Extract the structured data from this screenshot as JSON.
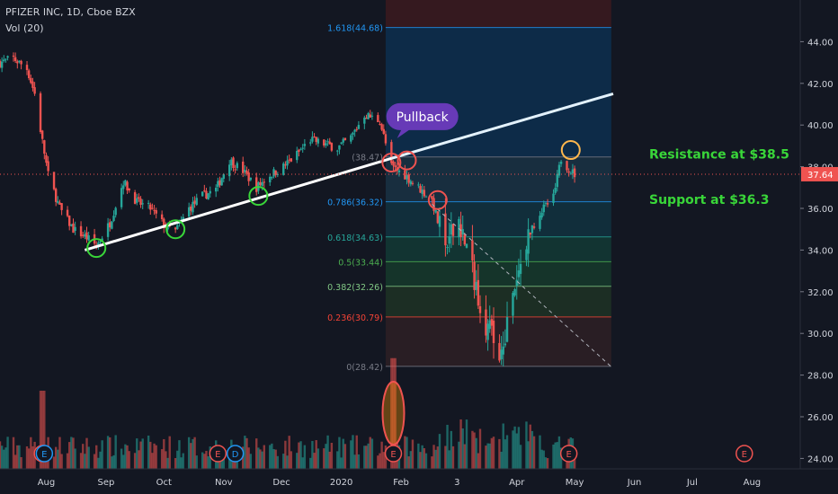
{
  "header": {
    "symbol_line": "PFIZER INC, 1D, Cboe BZX",
    "volume_indicator": "Vol (20)"
  },
  "colors": {
    "background": "#131722",
    "up": "#26a69a",
    "down": "#ef5350",
    "trendline": "#ffffff",
    "breakdown_line": "#b2b5be",
    "annotation_text": "#39d639",
    "pullback_bubble": "#673ab7",
    "price_badge": "#ef5350"
  },
  "annotations": {
    "pullback": "Pullback",
    "resistance": "Resistance at $38.5",
    "support": "Support at $36.3"
  },
  "current_price": "37.64",
  "event_markers": [
    {
      "label": "E",
      "date": "2019-07-30",
      "color": "#ef5350"
    },
    {
      "label": "E",
      "date": "2019-07-31",
      "color": "#2196f3"
    },
    {
      "label": "E",
      "date": "2019-10-29",
      "color": "#ef5350"
    },
    {
      "label": "D",
      "date": "2019-11-07",
      "color": "#2196f3"
    },
    {
      "label": "E",
      "date": "2020-01-28",
      "color": "#ef5350"
    },
    {
      "label": "E",
      "date": "2020-04-28",
      "color": "#ef5350"
    },
    {
      "label": "E",
      "date": "2020-07-28",
      "color": "#ef5350"
    }
  ],
  "chart_data": {
    "type": "candlestick",
    "x_axis": {
      "range": [
        "2019-07-08",
        "2020-08-26"
      ],
      "tick_labels": [
        {
          "date": "2019-08-01",
          "label": "Aug"
        },
        {
          "date": "2019-09-01",
          "label": "Sep"
        },
        {
          "date": "2019-10-01",
          "label": "Oct"
        },
        {
          "date": "2019-11-01",
          "label": "Nov"
        },
        {
          "date": "2019-12-01",
          "label": "Dec"
        },
        {
          "date": "2020-01-01",
          "label": "2020"
        },
        {
          "date": "2020-02-01",
          "label": "Feb"
        },
        {
          "date": "2020-03-01",
          "label": "3"
        },
        {
          "date": "2020-04-01",
          "label": "Apr"
        },
        {
          "date": "2020-05-01",
          "label": "May"
        },
        {
          "date": "2020-06-01",
          "label": "Jun"
        },
        {
          "date": "2020-07-01",
          "label": "Jul"
        },
        {
          "date": "2020-08-01",
          "label": "Aug"
        }
      ]
    },
    "y_axis": {
      "range": [
        23.5,
        46.0
      ],
      "tick_labels": [
        "24.00",
        "26.00",
        "28.00",
        "30.00",
        "32.00",
        "34.00",
        "36.00",
        "38.00",
        "40.00",
        "42.00",
        "44.00"
      ],
      "tick_values": [
        24,
        26,
        28,
        30,
        32,
        34,
        36,
        38,
        40,
        42,
        44
      ]
    },
    "price_path": [
      [
        "2019-07-08",
        43.0
      ],
      [
        "2019-07-15",
        43.2
      ],
      [
        "2019-07-22",
        42.7
      ],
      [
        "2019-07-26",
        41.5
      ],
      [
        "2019-07-30",
        39.2
      ],
      [
        "2019-08-02",
        37.6
      ],
      [
        "2019-08-08",
        36.0
      ],
      [
        "2019-08-15",
        35.0
      ],
      [
        "2019-08-22",
        34.6
      ],
      [
        "2019-08-27",
        34.2
      ],
      [
        "2019-09-03",
        35.3
      ],
      [
        "2019-09-10",
        37.3
      ],
      [
        "2019-09-17",
        36.3
      ],
      [
        "2019-09-24",
        36.0
      ],
      [
        "2019-10-01",
        35.2
      ],
      [
        "2019-10-07",
        34.9
      ],
      [
        "2019-10-14",
        36.0
      ],
      [
        "2019-10-21",
        36.6
      ],
      [
        "2019-10-28",
        36.9
      ],
      [
        "2019-11-04",
        38.3
      ],
      [
        "2019-11-11",
        37.8
      ],
      [
        "2019-11-18",
        37.0
      ],
      [
        "2019-11-25",
        37.6
      ],
      [
        "2019-12-02",
        38.0
      ],
      [
        "2019-12-09",
        38.6
      ],
      [
        "2019-12-16",
        39.3
      ],
      [
        "2019-12-23",
        39.1
      ],
      [
        "2019-12-30",
        38.9
      ],
      [
        "2020-01-06",
        39.4
      ],
      [
        "2020-01-13",
        40.5
      ],
      [
        "2020-01-21",
        40.2
      ],
      [
        "2020-01-27",
        38.0
      ],
      [
        "2020-02-03",
        37.6
      ],
      [
        "2020-02-10",
        37.0
      ],
      [
        "2020-02-17",
        36.4
      ],
      [
        "2020-02-24",
        34.0
      ],
      [
        "2020-03-02",
        35.5
      ],
      [
        "2020-03-09",
        33.0
      ],
      [
        "2020-03-16",
        30.5
      ],
      [
        "2020-03-23",
        29.0
      ],
      [
        "2020-03-30",
        31.5
      ],
      [
        "2020-04-06",
        34.5
      ],
      [
        "2020-04-13",
        35.8
      ],
      [
        "2020-04-20",
        36.5
      ],
      [
        "2020-04-24",
        38.4
      ],
      [
        "2020-04-29",
        37.8
      ],
      [
        "2020-05-01",
        37.64
      ]
    ],
    "fibonacci": {
      "start": "2020-01-24",
      "end": "2020-05-20",
      "levels": [
        {
          "ratio": "1.618",
          "price": 44.68,
          "label": "1.618(44.68)",
          "color": "#2196f3"
        },
        {
          "ratio": "1",
          "price": 38.47,
          "label": "(38.47)",
          "color": "#787b86"
        },
        {
          "ratio": "0.786",
          "price": 36.32,
          "label": "0.786(36.32)",
          "color": "#2196f3"
        },
        {
          "ratio": "0.618",
          "price": 34.63,
          "label": "0.618(34.63)",
          "color": "#26a69a"
        },
        {
          "ratio": "0.5",
          "price": 33.44,
          "label": "0.5(33.44)",
          "color": "#4caf50"
        },
        {
          "ratio": "0.382",
          "price": 32.26,
          "label": "0.382(32.26)",
          "color": "#81c784"
        },
        {
          "ratio": "0.236",
          "price": 30.79,
          "label": "0.236(30.79)",
          "color": "#f44336"
        },
        {
          "ratio": "0",
          "price": 28.42,
          "label": "0(28.42)",
          "color": "#787b86"
        }
      ]
    },
    "trendline": {
      "start": [
        "2019-08-21",
        34.0
      ],
      "end": [
        "2020-04-23",
        41.5
      ]
    },
    "trendline_extension": {
      "start": [
        "2020-01-27",
        38.4
      ],
      "end": [
        "2020-05-21",
        41.5
      ]
    },
    "breakdown_line": {
      "start": [
        "2020-02-17",
        36.2
      ],
      "end": [
        "2020-05-20",
        28.4
      ]
    },
    "circles": [
      {
        "date": "2019-08-27",
        "price": 34.1,
        "color": "#39d639"
      },
      {
        "date": "2019-10-07",
        "price": 35.0,
        "color": "#39d639"
      },
      {
        "date": "2019-11-19",
        "price": 36.6,
        "color": "#39d639"
      },
      {
        "date": "2020-01-27",
        "price": 38.2,
        "color": "#ef5350"
      },
      {
        "date": "2020-02-04",
        "price": 38.3,
        "color": "#ef5350"
      },
      {
        "date": "2020-02-20",
        "price": 36.4,
        "color": "#ef5350"
      },
      {
        "date": "2020-04-29",
        "price": 38.8,
        "color": "#ffb74d"
      }
    ],
    "volume_spike_circle": {
      "date": "2020-01-28"
    }
  }
}
